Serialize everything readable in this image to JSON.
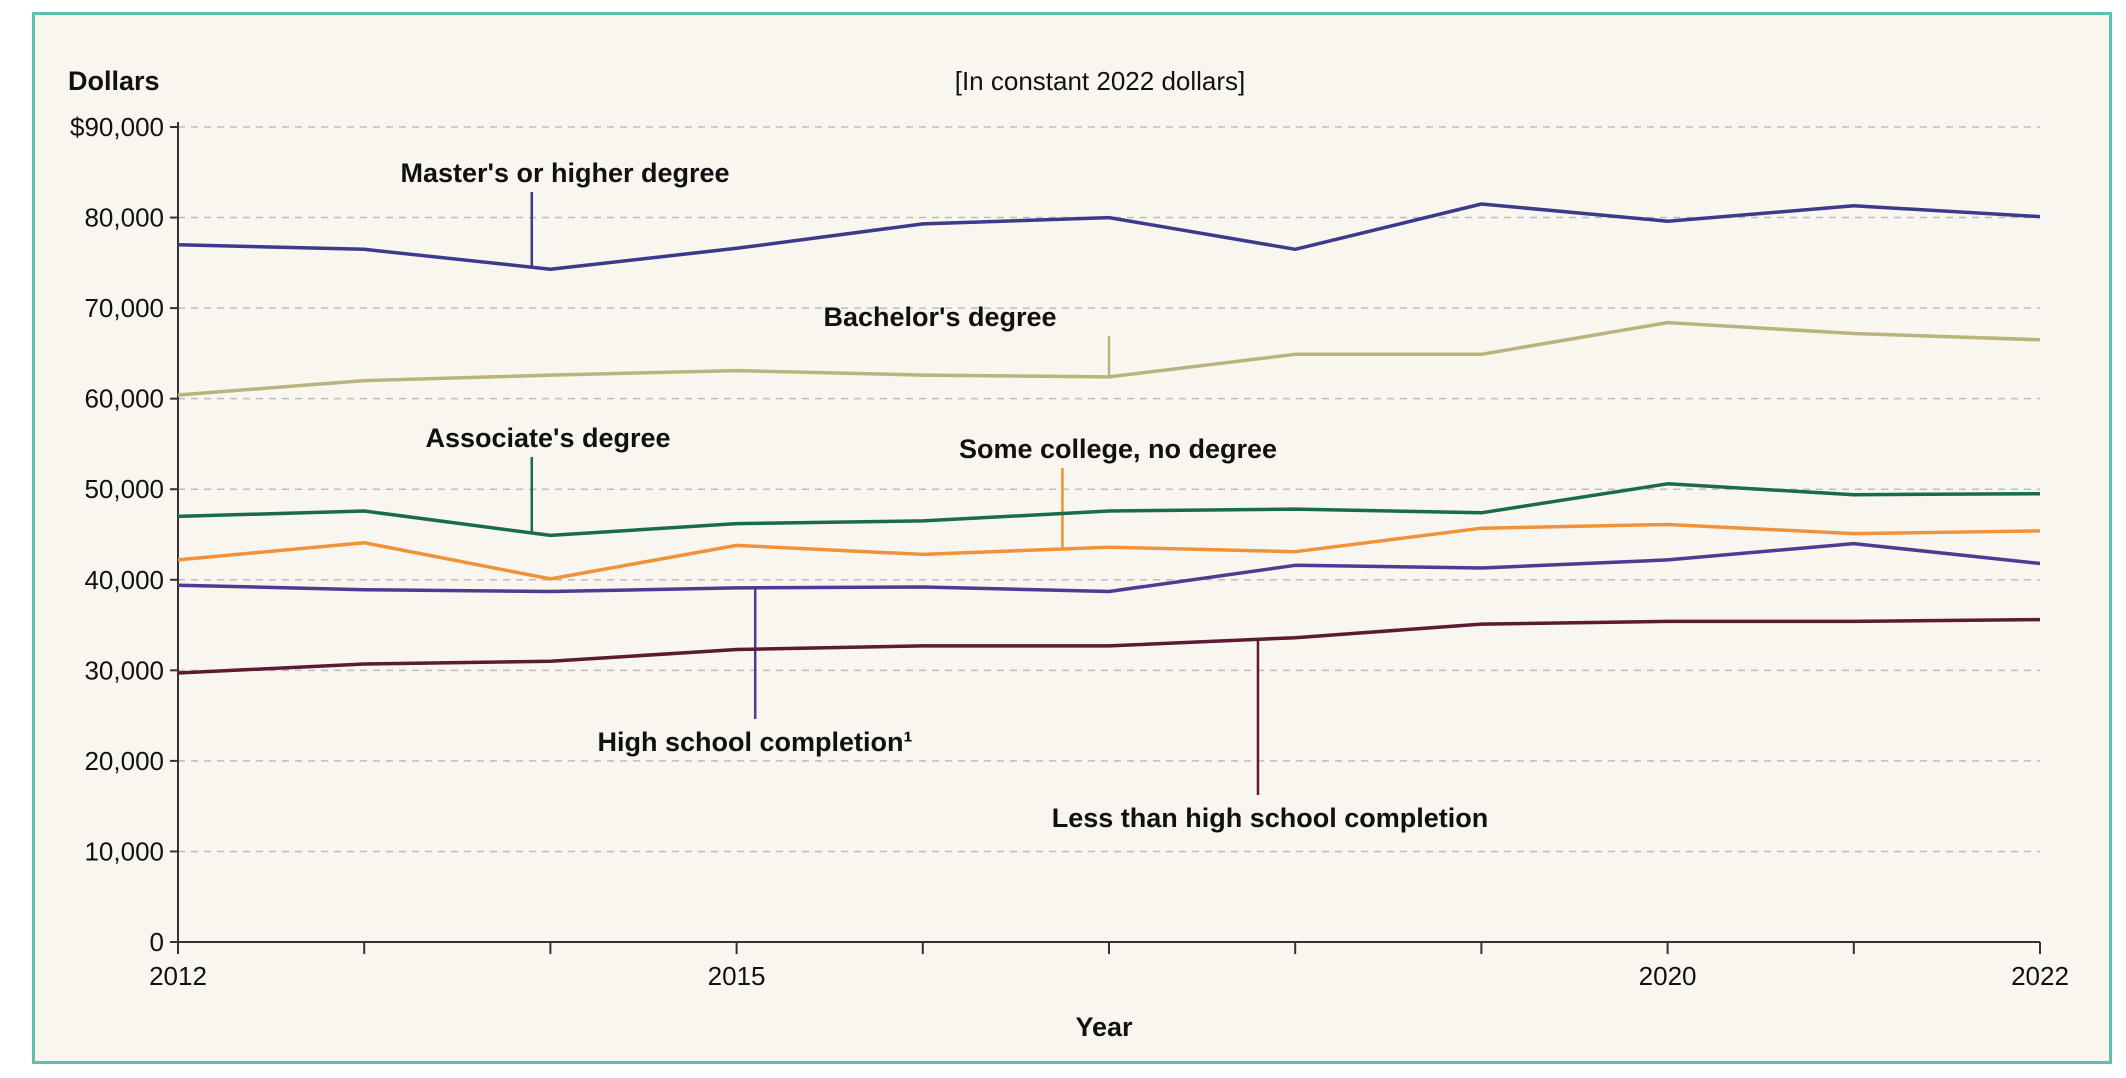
{
  "chart_data": {
    "type": "line",
    "subtitle": "[In constant 2022 dollars]",
    "ylabel": "Dollars",
    "xlabel": "Year",
    "ylim": [
      0,
      90000
    ],
    "xlim": [
      2012,
      2022
    ],
    "y_tick_labels": [
      "0",
      "10,000",
      "20,000",
      "30,000",
      "40,000",
      "50,000",
      "60,000",
      "70,000",
      "80,000",
      "$90,000"
    ],
    "y_tick_values": [
      0,
      10000,
      20000,
      30000,
      40000,
      50000,
      60000,
      70000,
      80000,
      90000
    ],
    "x_tick_labels": [
      "2012",
      "2015",
      "2020",
      "2022"
    ],
    "x_tick_values": [
      2012,
      2015,
      2020,
      2022
    ],
    "grid": true,
    "x": [
      2012,
      2013,
      2014,
      2015,
      2016,
      2017,
      2018,
      2019,
      2020,
      2021,
      2022
    ],
    "series": [
      {
        "name": "Master's or higher degree",
        "color": "#3d3a8e",
        "values": [
          77000,
          76500,
          74300,
          76600,
          79300,
          80000,
          76500,
          81500,
          79600,
          81300,
          80100
        ]
      },
      {
        "name": "Bachelor's degree",
        "color": "#b8b47c",
        "values": [
          60400,
          62000,
          62600,
          63100,
          62600,
          62400,
          64900,
          64900,
          68400,
          67200,
          66500
        ]
      },
      {
        "name": "Associate's degree",
        "color": "#1a6b4e",
        "values": [
          47000,
          47600,
          44900,
          46200,
          46500,
          47600,
          47800,
          47400,
          50600,
          49400,
          49500
        ]
      },
      {
        "name": "Some college, no degree",
        "color": "#f0923a",
        "values": [
          42200,
          44100,
          40100,
          43800,
          42800,
          43600,
          43100,
          45700,
          46100,
          45100,
          45400
        ]
      },
      {
        "name": "High school completion¹",
        "color": "#4e3c94",
        "values": [
          39400,
          38900,
          38700,
          39100,
          39200,
          38700,
          41600,
          41300,
          42200,
          44000,
          41800
        ]
      },
      {
        "name": "Less than high school completion",
        "color": "#5c1a33",
        "values": [
          29700,
          30700,
          31000,
          32300,
          32700,
          32700,
          33600,
          35100,
          35400,
          35400,
          35600
        ]
      }
    ],
    "annotations": [
      {
        "text": "Master's or higher degree",
        "series": 0
      },
      {
        "text": "Bachelor's degree",
        "series": 1
      },
      {
        "text": "Associate's degree",
        "series": 2
      },
      {
        "text": "Some college, no degree",
        "series": 3
      },
      {
        "text": "High school completion¹",
        "series": 4
      },
      {
        "text": "Less than high school completion",
        "series": 5
      }
    ]
  }
}
